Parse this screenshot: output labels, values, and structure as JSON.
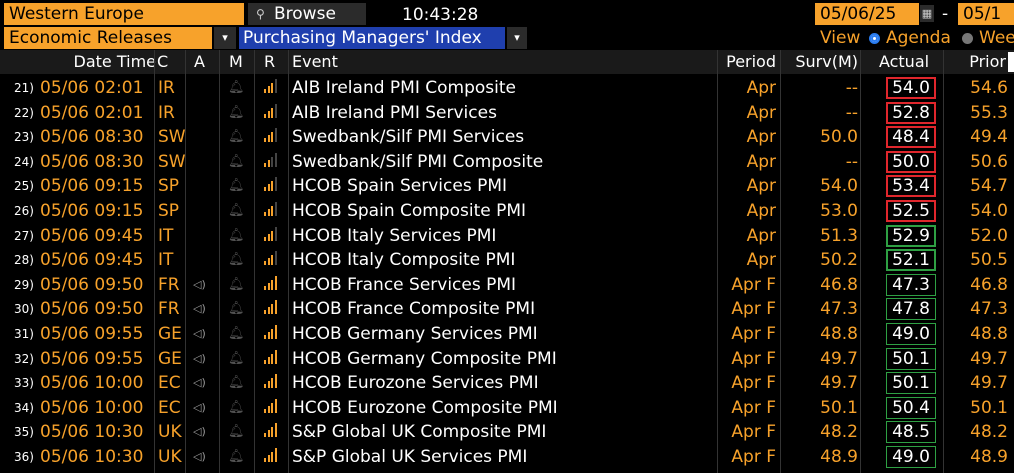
{
  "toolbar": {
    "region": "Western Europe",
    "browse_label": "Browse",
    "clock": "10:43:28",
    "date_start": "05/06/25",
    "date_sep": "-",
    "date_end": "05/1",
    "category": "Economic Releases",
    "category_drop": "▾",
    "subcategory": "Purchasing Managers' Index",
    "subcategory_drop": "▾",
    "view_label": "View",
    "view_option_1": "Agenda",
    "view_option_2": "Wee"
  },
  "columns": {
    "datetime": "Date Time",
    "country": "C",
    "alert": "A",
    "m": "M",
    "r": "R",
    "event": "Event",
    "period": "Period",
    "surv": "Surv(M)",
    "actual": "Actual",
    "prior": "Prior"
  },
  "colors": {
    "orange": "#f7a22b",
    "actual_below": "#e0262c",
    "actual_above": "#2ea043",
    "actual_neutral": "#2ea043"
  },
  "rows": [
    {
      "num": "21)",
      "dt": "05/06 02:01",
      "c": "IR",
      "spk": false,
      "bars": 2,
      "event": "AIB Ireland PMI Composite",
      "period": "Apr",
      "surv": "--",
      "actual": "54.0",
      "prior": "54.6",
      "box": "red"
    },
    {
      "num": "22)",
      "dt": "05/06 02:01",
      "c": "IR",
      "spk": false,
      "bars": 2,
      "event": "AIB Ireland PMI Services",
      "period": "Apr",
      "surv": "--",
      "actual": "52.8",
      "prior": "55.3",
      "box": "red"
    },
    {
      "num": "23)",
      "dt": "05/06 08:30",
      "c": "SW",
      "spk": false,
      "bars": 2,
      "event": "Swedbank/Silf PMI Services",
      "period": "Apr",
      "surv": "50.0",
      "actual": "48.4",
      "prior": "49.4",
      "box": "red"
    },
    {
      "num": "24)",
      "dt": "05/06 08:30",
      "c": "SW",
      "spk": false,
      "bars": 1,
      "event": "Swedbank/Silf PMI Composite",
      "period": "Apr",
      "surv": "--",
      "actual": "50.0",
      "prior": "50.6",
      "box": "red"
    },
    {
      "num": "25)",
      "dt": "05/06 09:15",
      "c": "SP",
      "spk": false,
      "bars": 2,
      "event": "HCOB Spain Services PMI",
      "period": "Apr",
      "surv": "54.0",
      "actual": "53.4",
      "prior": "54.7",
      "box": "red"
    },
    {
      "num": "26)",
      "dt": "05/06 09:15",
      "c": "SP",
      "spk": false,
      "bars": 2,
      "event": "HCOB Spain Composite PMI",
      "period": "Apr",
      "surv": "53.0",
      "actual": "52.5",
      "prior": "54.0",
      "box": "red"
    },
    {
      "num": "27)",
      "dt": "05/06 09:45",
      "c": "IT",
      "spk": false,
      "bars": 2,
      "event": "HCOB Italy Services PMI",
      "period": "Apr",
      "surv": "51.3",
      "actual": "52.9",
      "prior": "52.0",
      "box": "green"
    },
    {
      "num": "28)",
      "dt": "05/06 09:45",
      "c": "IT",
      "spk": false,
      "bars": 2,
      "event": "HCOB Italy Composite PMI",
      "period": "Apr",
      "surv": "50.2",
      "actual": "52.1",
      "prior": "50.5",
      "box": "green"
    },
    {
      "num": "29)",
      "dt": "05/06 09:50",
      "c": "FR",
      "spk": true,
      "bars": 3,
      "event": "HCOB France Services PMI",
      "period": "Apr F",
      "surv": "46.8",
      "actual": "47.3",
      "prior": "46.8",
      "box": "thin"
    },
    {
      "num": "30)",
      "dt": "05/06 09:50",
      "c": "FR",
      "spk": true,
      "bars": 3,
      "event": "HCOB France Composite PMI",
      "period": "Apr F",
      "surv": "47.3",
      "actual": "47.8",
      "prior": "47.3",
      "box": "thin"
    },
    {
      "num": "31)",
      "dt": "05/06 09:55",
      "c": "GE",
      "spk": true,
      "bars": 3,
      "event": "HCOB Germany Services PMI",
      "period": "Apr F",
      "surv": "48.8",
      "actual": "49.0",
      "prior": "48.8",
      "box": "thin"
    },
    {
      "num": "32)",
      "dt": "05/06 09:55",
      "c": "GE",
      "spk": true,
      "bars": 3,
      "event": "HCOB Germany Composite PMI",
      "period": "Apr F",
      "surv": "49.7",
      "actual": "50.1",
      "prior": "49.7",
      "box": "thin"
    },
    {
      "num": "33)",
      "dt": "05/06 10:00",
      "c": "EC",
      "spk": true,
      "bars": 3,
      "event": "HCOB Eurozone Services PMI",
      "period": "Apr F",
      "surv": "49.7",
      "actual": "50.1",
      "prior": "49.7",
      "box": "thin"
    },
    {
      "num": "34)",
      "dt": "05/06 10:00",
      "c": "EC",
      "spk": true,
      "bars": 3,
      "event": "HCOB Eurozone Composite PMI",
      "period": "Apr F",
      "surv": "50.1",
      "actual": "50.4",
      "prior": "50.1",
      "box": "thin"
    },
    {
      "num": "35)",
      "dt": "05/06 10:30",
      "c": "UK",
      "spk": true,
      "bars": 3,
      "event": "S&P Global UK Composite PMI",
      "period": "Apr F",
      "surv": "48.2",
      "actual": "48.5",
      "prior": "48.2",
      "box": "thin"
    },
    {
      "num": "36)",
      "dt": "05/06 10:30",
      "c": "UK",
      "spk": true,
      "bars": 3,
      "event": "S&P Global UK Services PMI",
      "period": "Apr F",
      "surv": "48.9",
      "actual": "49.0",
      "prior": "48.9",
      "box": "thin"
    }
  ]
}
